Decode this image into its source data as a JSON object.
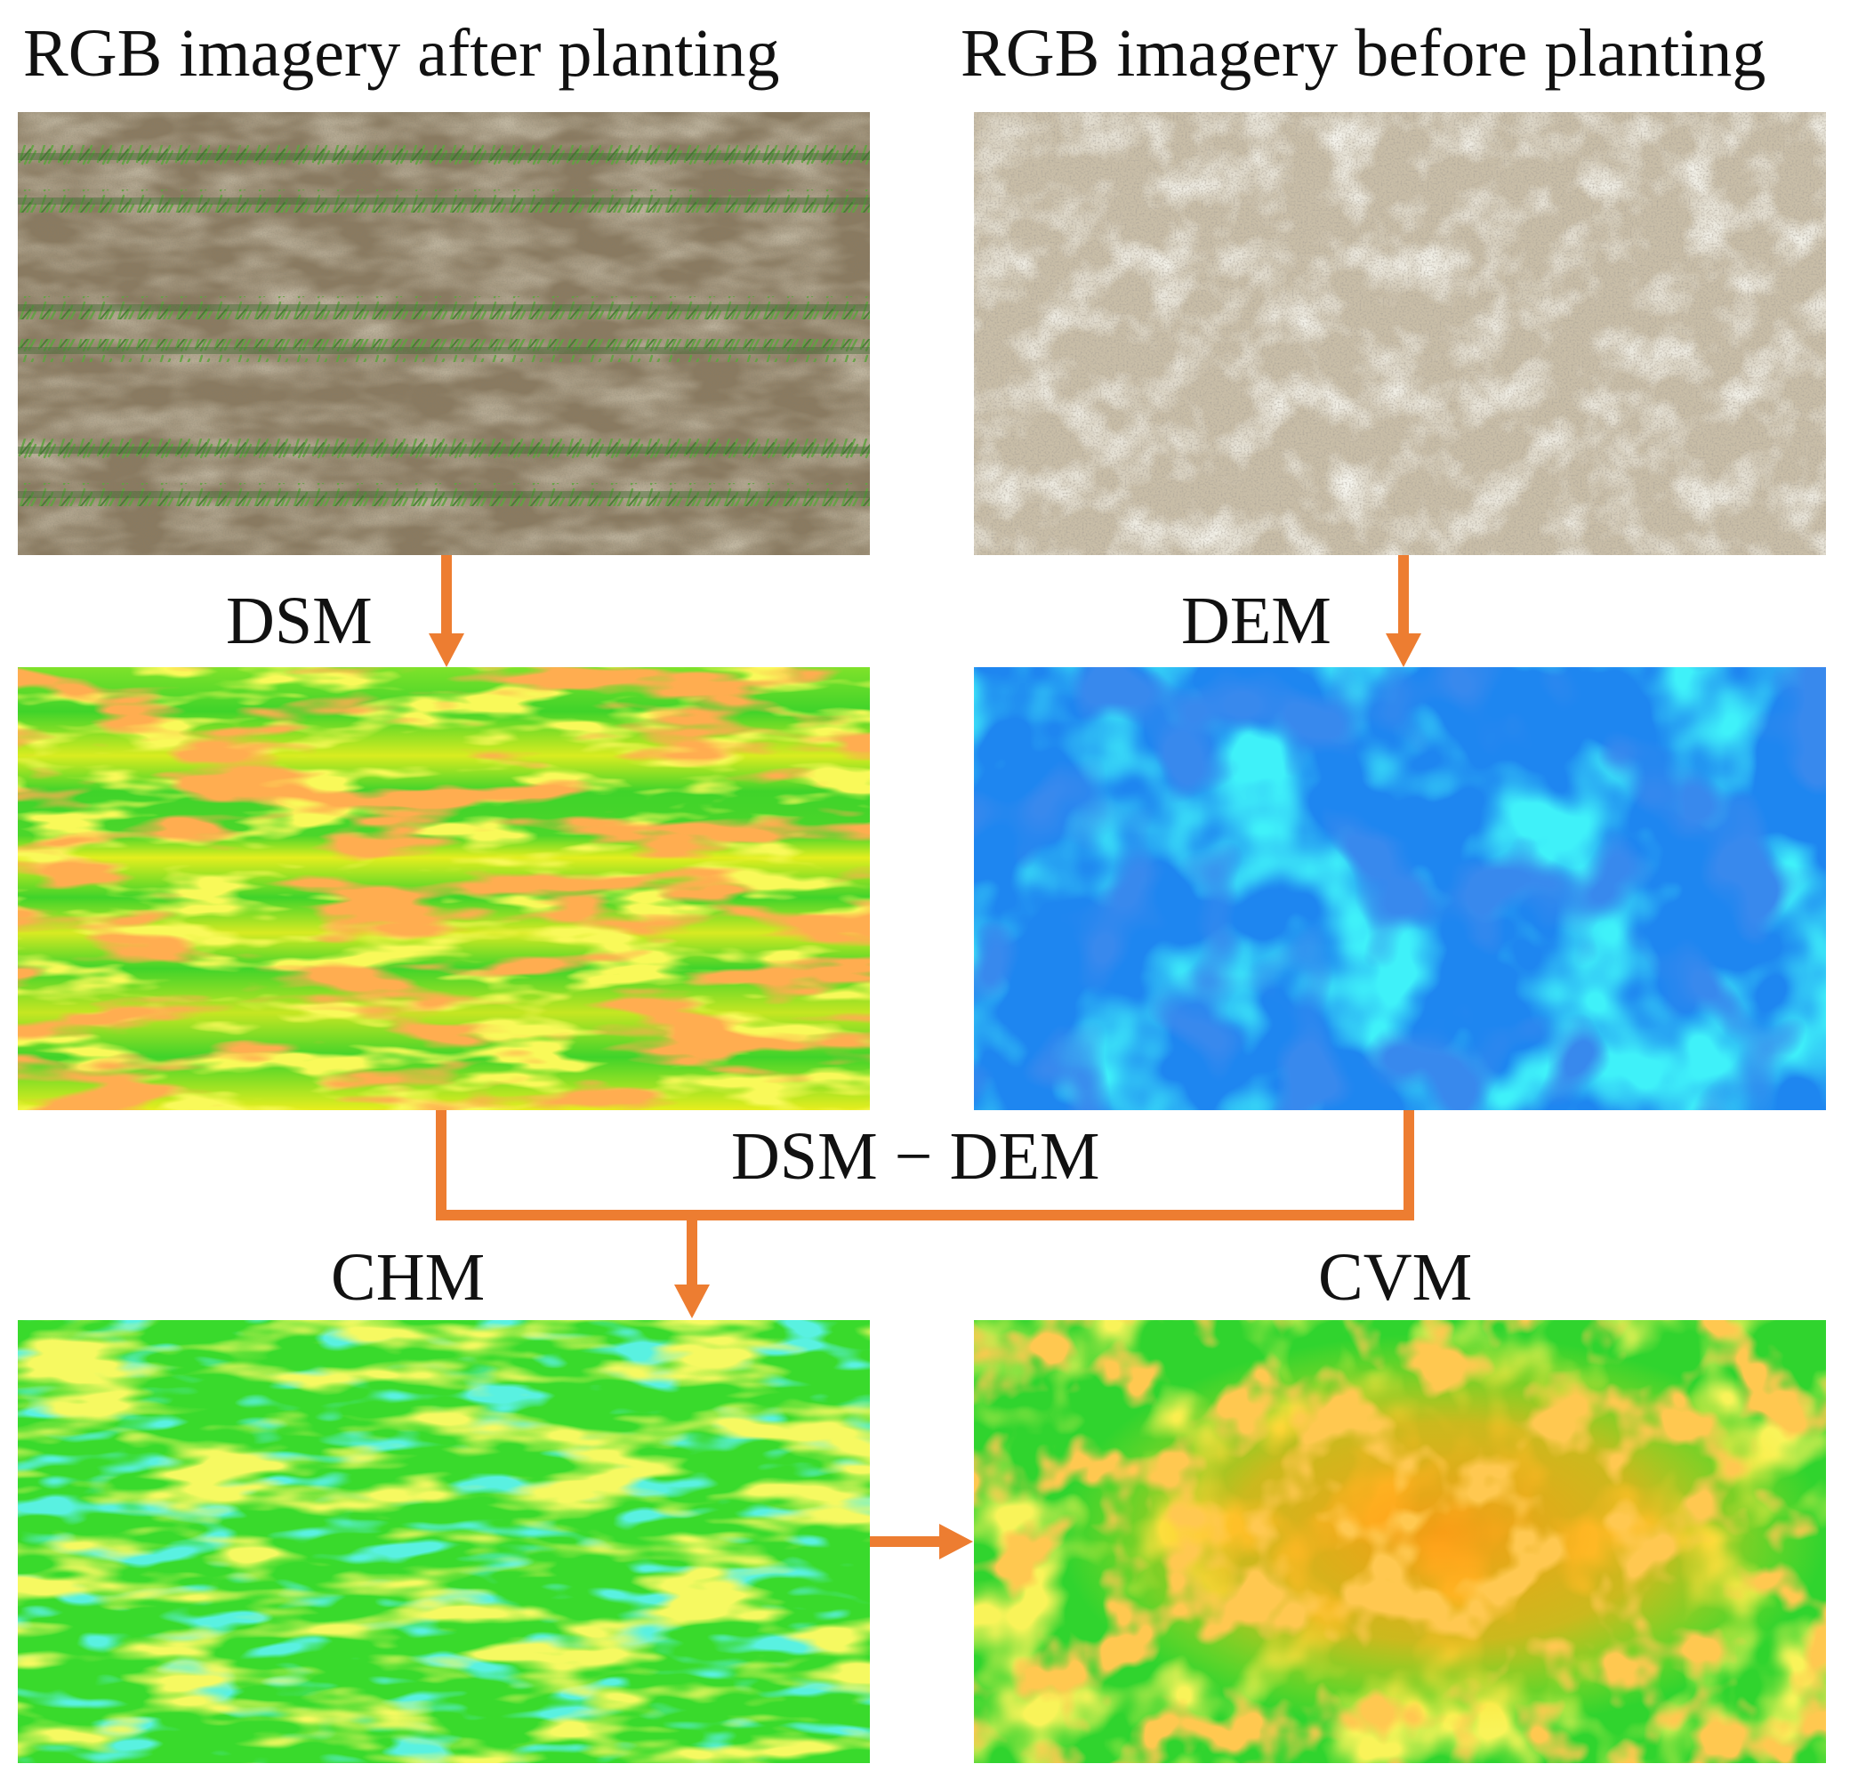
{
  "labels": {
    "rgb_after": "RGB imagery after planting",
    "rgb_before": "RGB imagery before planting",
    "dsm": "DSM",
    "dem": "DEM",
    "difference": "DSM − DEM",
    "chm": "CHM",
    "cvm": "CVM"
  },
  "colors": {
    "arrow": "#ED7D31",
    "soil_after": "#8a7a60",
    "soil_before": "#c9bea8",
    "crop_green": "#4f8f3a",
    "dsm_green": "#49d62a",
    "dsm_orange": "#ff6a1a",
    "dem_blue": "#1e78f0",
    "dem_cyan": "#15e6f0",
    "chm_green": "#34dd2a",
    "chm_yellow": "#e6f01a",
    "cvm_green": "#2ed62a",
    "cvm_orange": "#ff9a14"
  }
}
